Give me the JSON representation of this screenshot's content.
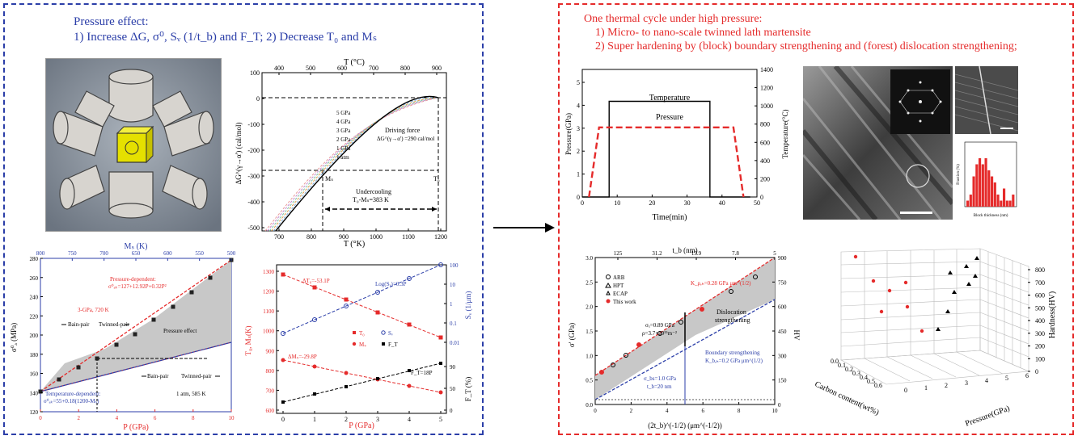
{
  "left_panel": {
    "title_line1": "Pressure effect:",
    "title_line2": "1) Increase ΔG, σ⁰, Sᵥ (1/t_b) and F_T; 2) Decrease T₀ and Mₛ"
  },
  "right_panel": {
    "title_line1": "One thermal cycle under high pressure:",
    "title_line2": "1) Micro- to nano-scale twinned lath martensite",
    "title_line3": "2)  Super hardening by (block) boundary strengthening and (forest) dislocation strengthening;"
  },
  "chart_dG": {
    "top_axis_title": "T (°C)",
    "top_ticks": [
      "400",
      "500",
      "600",
      "700",
      "800",
      "900"
    ],
    "bottom_axis_title": "T (°K)",
    "bottom_ticks": [
      "700",
      "800",
      "900",
      "1000",
      "1100",
      "1200"
    ],
    "y_axis_title": "ΔG^(γ→α') (cal/mol)",
    "y_ticks": [
      "100",
      "0",
      "-100",
      "-200",
      "-300",
      "-400",
      "-500"
    ],
    "series_labels": [
      "5 GPa",
      "4 GPa",
      "3 GPa",
      "2 GPa",
      "1 GPa",
      "1 atm"
    ],
    "annotation_driving_1": "Driving force",
    "annotation_driving_2": "ΔG^(γ→α') =290 cal/mol",
    "annotation_under_1": "Undercooling",
    "annotation_under_2": "T₀-Mₛ=383 K",
    "label_ms": "Mₛ",
    "label_t0": "T₀"
  },
  "chart_sigma": {
    "top_axis_title": "Mₛ (K)",
    "top_ticks": [
      "800",
      "750",
      "700",
      "650",
      "600",
      "550",
      "500"
    ],
    "bottom_axis_title": "P (GPa)",
    "bottom_ticks": [
      "0",
      "2",
      "4",
      "6",
      "8",
      "10"
    ],
    "y_axis_title": "σ⁰ₐ (MPa)",
    "y_ticks": [
      "280",
      "260",
      "240",
      "220",
      "200",
      "180",
      "160",
      "140",
      "120"
    ],
    "ann_pressure_dep_1": "Pressure-dependent:",
    "ann_pressure_dep_2": "σ⁰ₐₖ=127+12.92P+0.32P²",
    "ann_3gpa": "3-GPa, 720 K",
    "ann_bain": "Bain-pair",
    "ann_twinned": "Twinned-pair",
    "ann_effect": "Pressure effect",
    "ann_temp_dep_1": "Temperature-dependent:",
    "ann_temp_dep_2": "σ⁰ₐₖ=55+0.18(1200-Mₛ)",
    "ann_1atm": "1 atm, 585 K"
  },
  "chart_T0": {
    "bottom_axis_title": "P (GPa)",
    "bottom_ticks": [
      "0",
      "1",
      "2",
      "3",
      "4",
      "5"
    ],
    "y_axis_title": "T₀, Mₛ(K)",
    "y_ticks": [
      "1300",
      "1200",
      "1100",
      "1000",
      "900",
      "800",
      "700",
      "600"
    ],
    "right_axis_title": "Sᵥ (1/μm)",
    "right_ticks": [
      "100",
      "10",
      "1",
      "0.1",
      "0.01"
    ],
    "right2_axis_title": "F_T (%)",
    "right2_ticks": [
      "90",
      "50",
      "0"
    ],
    "ann_dT0": "ΔT₀=-53.1P",
    "ann_logSv": "Log(Sᵥ)=0.3P",
    "ann_dMs": "ΔMₛ=-29.8P",
    "ann_FT": "F_T=18P",
    "legend": [
      "T₀",
      "Mₛ",
      "Sᵥ",
      "F_T"
    ]
  },
  "chart_cycle": {
    "y_axis_title": "Pressure(GPa)",
    "y_ticks": [
      "5",
      "4",
      "3",
      "2",
      "1",
      "0"
    ],
    "right_axis_title": "Temperature(°C)",
    "right_ticks": [
      "1400",
      "1200",
      "1000",
      "800",
      "600",
      "400",
      "200",
      "0"
    ],
    "x_axis_title": "Time(min)",
    "x_ticks": [
      "0",
      "10",
      "20",
      "30",
      "40",
      "50"
    ],
    "label_temperature": "Temperature",
    "label_pressure": "Pressure",
    "chart_data": {
      "type": "line",
      "series": [
        {
          "name": "Temperature",
          "x": [
            0,
            8,
            8,
            38,
            38,
            50
          ],
          "y": [
            0,
            0,
            1050,
            1050,
            0,
            0
          ]
        },
        {
          "name": "Pressure",
          "x": [
            2,
            5,
            45,
            48
          ],
          "y": [
            0,
            3,
            3,
            0
          ]
        }
      ]
    }
  },
  "chart_hist": {
    "x_axis_title": "Block thickness (nm)",
    "y_axis_title": "Fraction (%)",
    "chart_data": {
      "type": "bar",
      "values": [
        1,
        2,
        5,
        7,
        8,
        7,
        8,
        6,
        5,
        4,
        2,
        1,
        3,
        1,
        1,
        2
      ]
    }
  },
  "chart_hp": {
    "top_axis_title": "t_b (nm)",
    "top_ticks": [
      "125",
      "31.2",
      "13.9",
      "7.8",
      "5"
    ],
    "y_axis_title": "σ' (GPa)",
    "y_ticks": [
      "3.0",
      "2.5",
      "2.0",
      "1.5",
      "1.0",
      "0.5",
      "0.0"
    ],
    "right_axis_title": "HV",
    "right_ticks": [
      "900",
      "750",
      "600",
      "450",
      "300",
      "150",
      "0"
    ],
    "x_axis_title": "(2t_b)^(-1/2) (μm^(-1/2))",
    "x_ticks": [
      "0",
      "2",
      "4",
      "6",
      "8",
      "10"
    ],
    "legend": [
      "ARB",
      "HPT",
      "ECAP",
      "This work"
    ],
    "ann_kdis": "K_ρ,ₕ=0.28 GPa μm^(1/2)",
    "ann_disloc_1": "Dislocation",
    "ann_disloc_2": "strengthening",
    "ann_sig1": "σₓ=0.89 GPa",
    "ann_sig2": "ρ=3.7×10¹⁵m⁻²",
    "ann_bound_1": "Boundary strengthening",
    "ann_bound_2": "K_b,ₕ=0.2 GPa μm^(1/2)",
    "ann_sig3": "σ_bs=1.0 GPa",
    "ann_sig4": "t_b=20 nm"
  },
  "chart_3d": {
    "z_axis_title": "Hardness(HV)",
    "z_ticks": [
      "800",
      "700",
      "600",
      "500",
      "400",
      "300",
      "200",
      "100",
      "0"
    ],
    "x_axis_title": "Pressure(GPa)",
    "x_ticks": [
      "0",
      "1",
      "2",
      "3",
      "4",
      "5",
      "6"
    ],
    "y_axis_title": "Carbon content(wt%)",
    "y_ticks": [
      "0.0",
      "0.1",
      "0.2",
      "0.3",
      "0.4",
      "0.5",
      "0.6"
    ]
  },
  "colors": {
    "blue": "#2b3ea8",
    "red": "#e52b2b",
    "gray_fill": "#c8c8c8"
  }
}
